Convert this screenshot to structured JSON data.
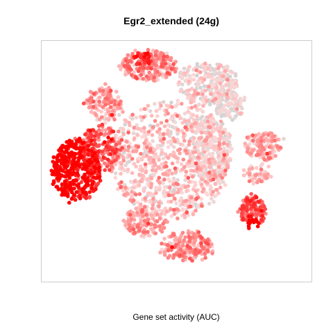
{
  "chart_data": {
    "type": "scatter",
    "title": "Egr2_extended (24g)",
    "xlabel": "Gene set activity (AUC)",
    "ylabel": "",
    "axes_visible": false,
    "grid": false,
    "legend": "none",
    "color_scale": {
      "low": "#d3d3d3",
      "mid": "#ffc8c8",
      "high": "#ff0000"
    },
    "xlim": [
      -50,
      50
    ],
    "ylim": [
      -50,
      50
    ]
  }
}
